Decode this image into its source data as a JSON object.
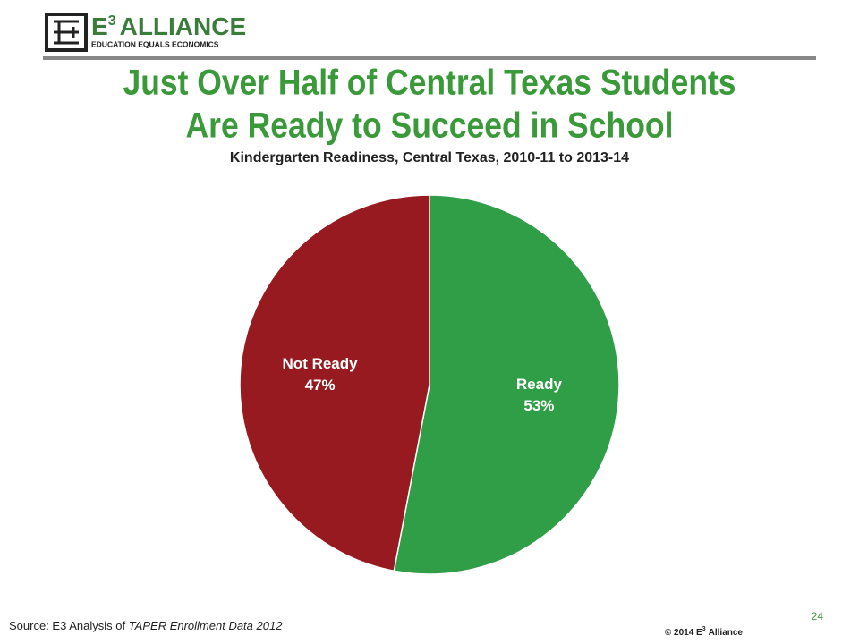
{
  "logo": {
    "letter": "E",
    "superscript": "3",
    "name": "ALLIANCE",
    "tagline": "EDUCATION EQUALS ECONOMICS"
  },
  "slide_title": [
    "Just Over Half of Central Texas Students",
    "Are Ready to Succeed in School"
  ],
  "chart_data": {
    "type": "pie",
    "title": "Kindergarten Readiness, Central Texas, 2010-11 to 2013-14",
    "categories": [
      "Ready",
      "Not Ready"
    ],
    "values": [
      53,
      47
    ],
    "value_labels": [
      "53%",
      "47%"
    ],
    "colors": [
      "#2f9e47",
      "#961a20"
    ]
  },
  "footer": {
    "source_prefix": "Source: E3 Analysis of",
    "source_italic": "TAPER Enrollment Data 2012",
    "page_number": 24,
    "copyright_prefix": "© 2014 E",
    "copyright_superscript": "3",
    "copyright_suffix": "Alliance"
  }
}
